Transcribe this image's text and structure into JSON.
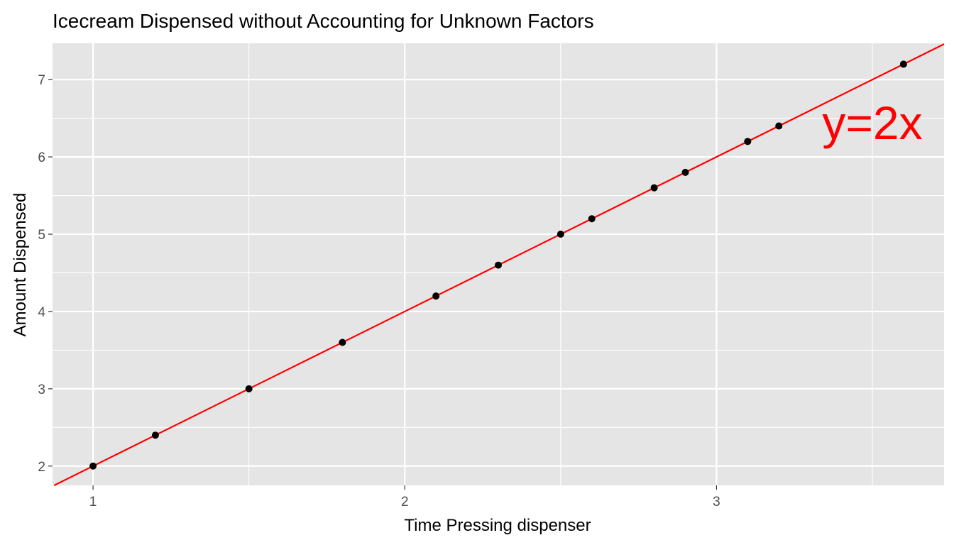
{
  "chart_data": {
    "type": "scatter",
    "title": "Icecream Dispensed without Accounting for Unknown Factors",
    "xlabel": "Time Pressing dispenser",
    "ylabel": "Amount Dispensed",
    "xlim": [
      0.87,
      3.73
    ],
    "ylim": [
      1.75,
      7.47
    ],
    "x_ticks": [
      1,
      2,
      3
    ],
    "y_ticks": [
      2,
      3,
      4,
      5,
      6,
      7
    ],
    "x_minor_gridlines": [
      1.5,
      2.5,
      3.5
    ],
    "y_minor_gridlines": [
      2.5,
      3.5,
      4.5,
      5.5,
      6.5
    ],
    "grid": true,
    "panel_background": "#e5e5e5",
    "point_color": "#000000",
    "points": [
      {
        "x": 1.0,
        "y": 2.0
      },
      {
        "x": 1.2,
        "y": 2.4
      },
      {
        "x": 1.5,
        "y": 3.0
      },
      {
        "x": 1.8,
        "y": 3.6
      },
      {
        "x": 2.1,
        "y": 4.2
      },
      {
        "x": 2.3,
        "y": 4.6
      },
      {
        "x": 2.5,
        "y": 5.0
      },
      {
        "x": 2.6,
        "y": 5.2
      },
      {
        "x": 2.8,
        "y": 5.6
      },
      {
        "x": 2.9,
        "y": 5.8
      },
      {
        "x": 3.1,
        "y": 6.2
      },
      {
        "x": 3.2,
        "y": 6.4
      },
      {
        "x": 3.6,
        "y": 7.2
      }
    ],
    "line": {
      "slope": 2,
      "intercept": 0,
      "color": "#ff0000"
    },
    "annotation": {
      "text": "y=2x",
      "x": 3.5,
      "y": 6.45,
      "color": "#ff0000"
    }
  }
}
